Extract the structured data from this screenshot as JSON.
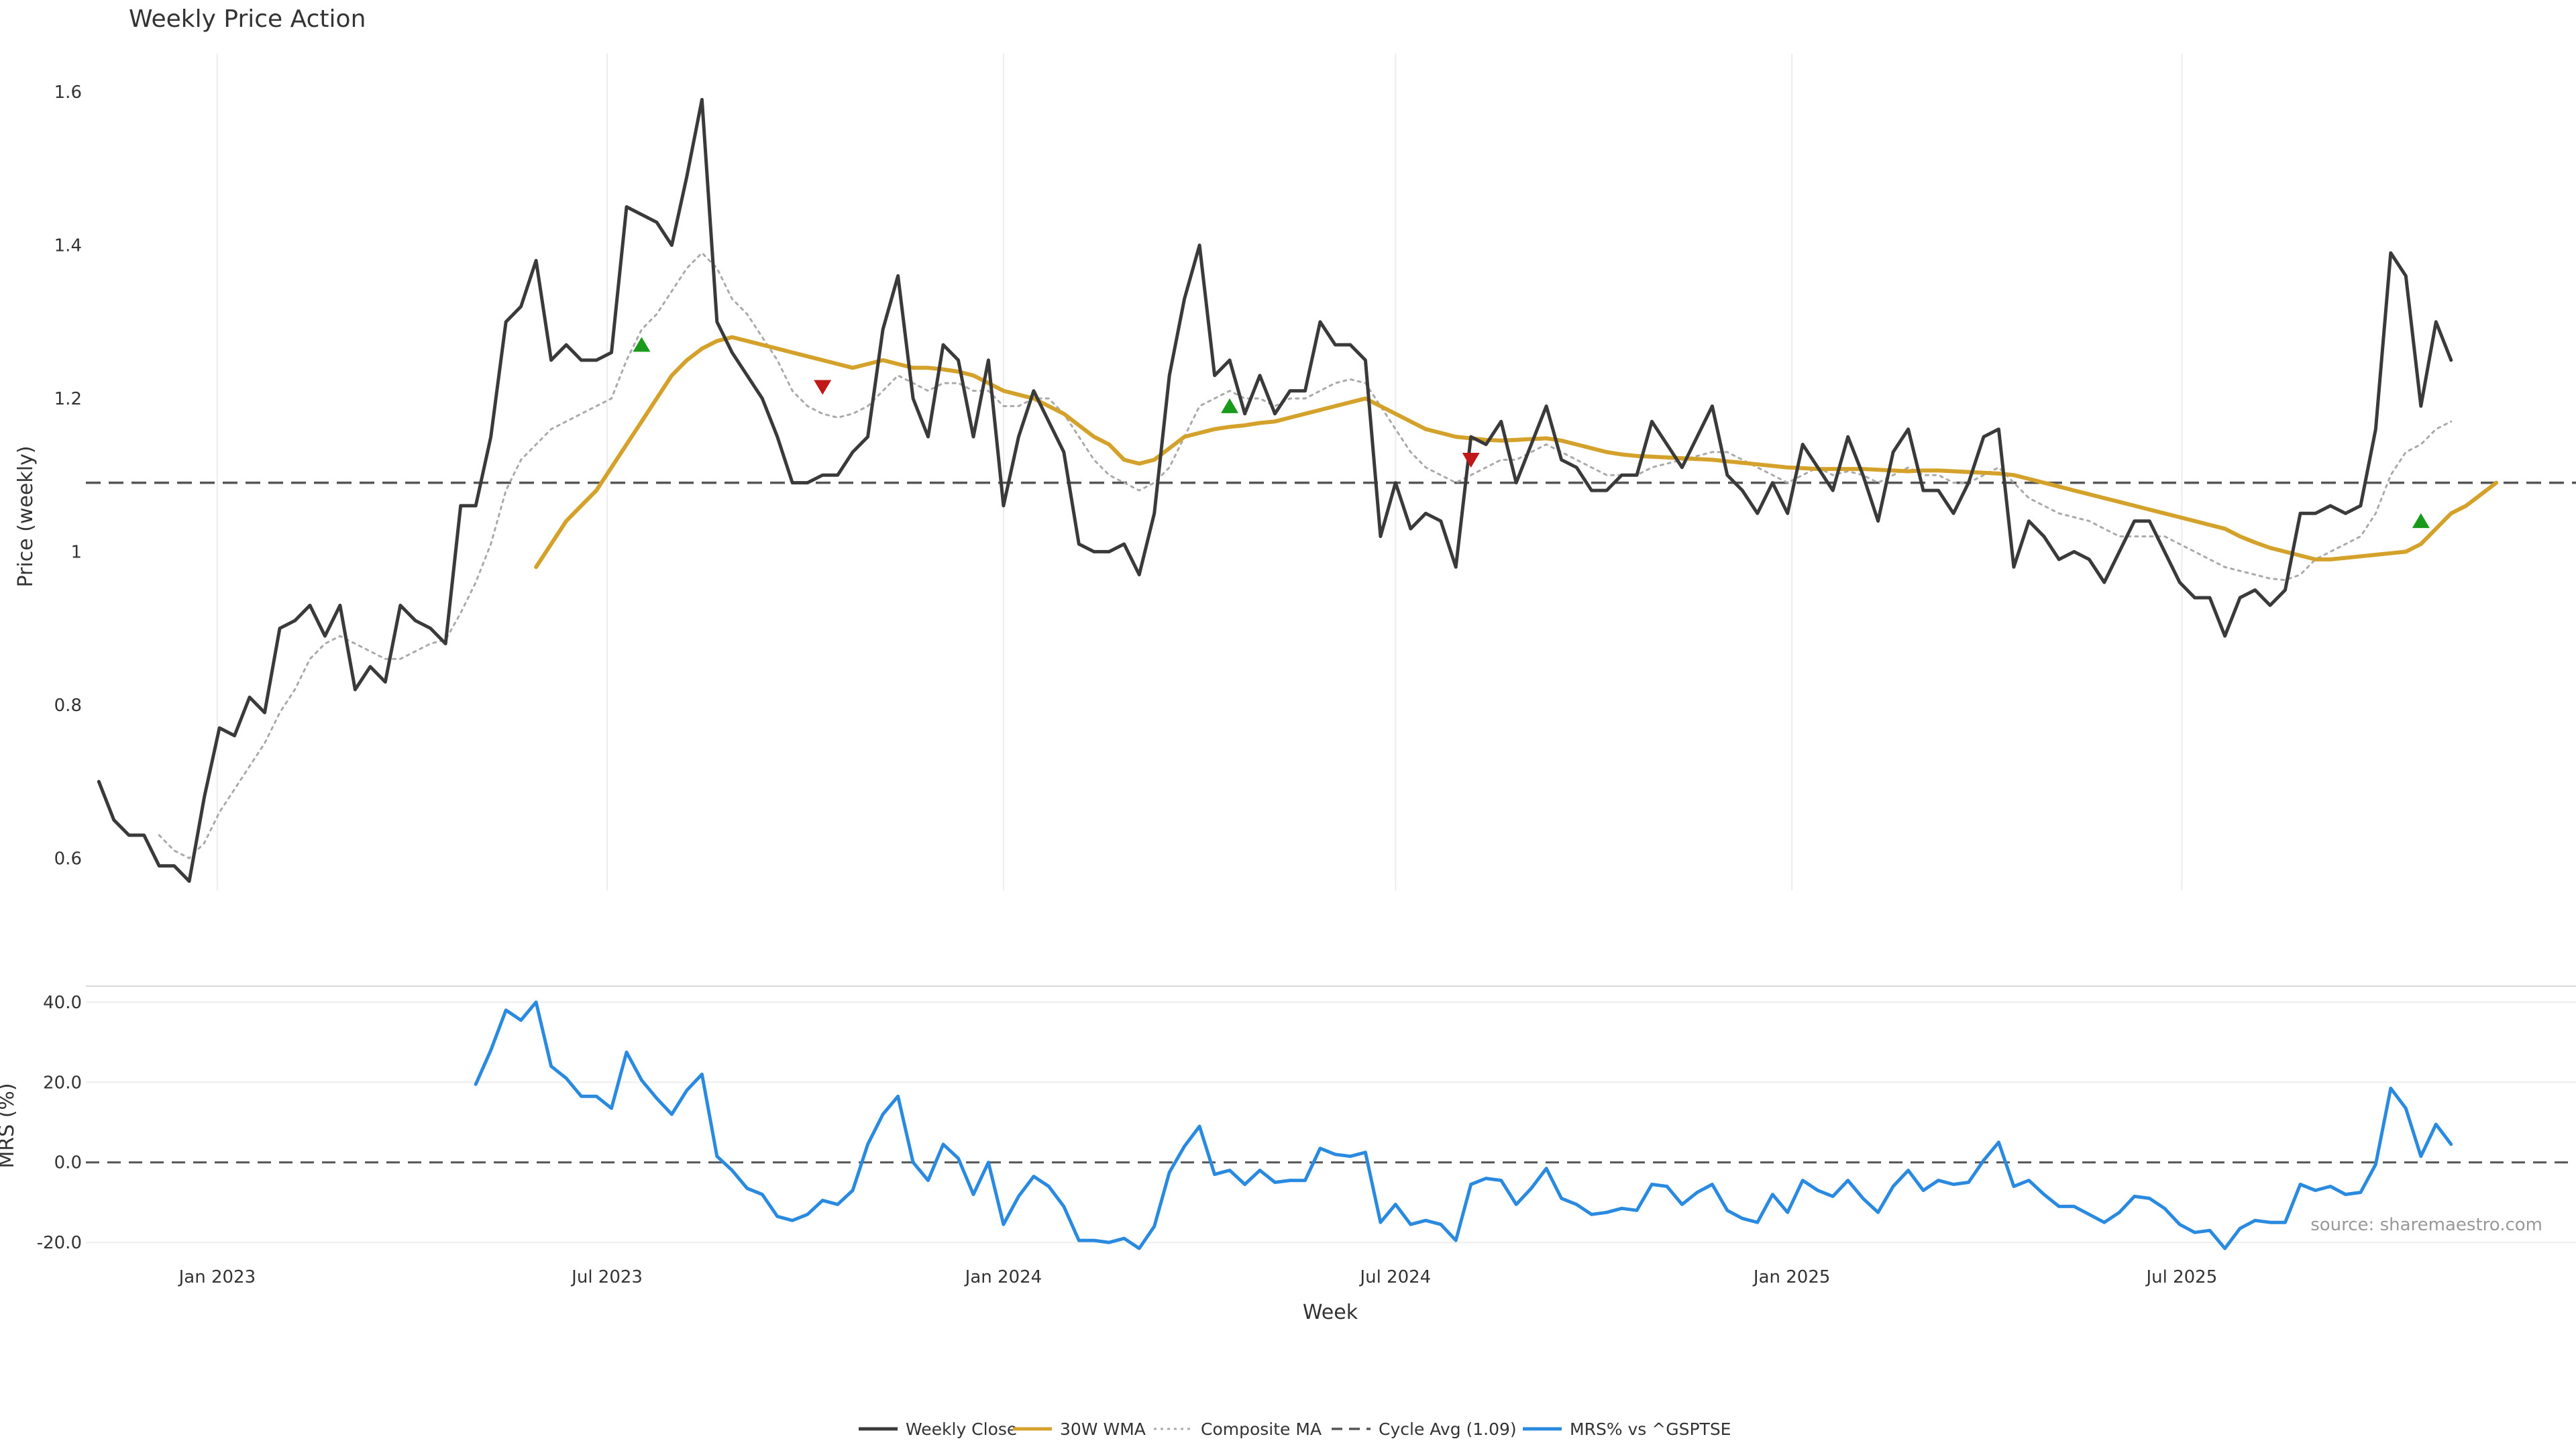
{
  "chart_data": [
    {
      "type": "line",
      "title": "Weekly Price Action",
      "ylabel": "Price (weekly)",
      "xlabel": "",
      "ylim": [
        0.56,
        1.65
      ],
      "yticks": [
        0.6,
        0.8,
        1,
        1.2,
        1.4,
        1.6
      ],
      "ytick_labels": [
        "0.6",
        "0.8",
        "1",
        "1.2",
        "1.4",
        "1.6"
      ],
      "x_start": "2022-11-07",
      "x_step_days": 7,
      "x_range": [
        "2022-11-01",
        "2025-12-31"
      ],
      "grid": "vertical",
      "series": [
        {
          "name": "Weekly Close",
          "color": "#3a3a3a",
          "values": [
            0.7,
            0.65,
            0.63,
            0.63,
            0.59,
            0.59,
            0.57,
            0.68,
            0.77,
            0.76,
            0.81,
            0.79,
            0.9,
            0.91,
            0.93,
            0.89,
            0.93,
            0.82,
            0.85,
            0.83,
            0.93,
            0.91,
            0.9,
            0.88,
            1.06,
            1.06,
            1.15,
            1.3,
            1.32,
            1.38,
            1.25,
            1.27,
            1.25,
            1.25,
            1.26,
            1.45,
            1.44,
            1.43,
            1.4,
            1.49,
            1.59,
            1.3,
            1.26,
            1.23,
            1.2,
            1.15,
            1.09,
            1.09,
            1.1,
            1.1,
            1.13,
            1.15,
            1.29,
            1.36,
            1.2,
            1.15,
            1.27,
            1.25,
            1.15,
            1.25,
            1.06,
            1.15,
            1.21,
            1.17,
            1.13,
            1.01,
            1.0,
            1.0,
            1.01,
            0.97,
            1.05,
            1.23,
            1.33,
            1.4,
            1.23,
            1.25,
            1.18,
            1.23,
            1.18,
            1.21,
            1.21,
            1.3,
            1.27,
            1.27,
            1.25,
            1.02,
            1.09,
            1.03,
            1.05,
            1.04,
            0.98,
            1.15,
            1.14,
            1.17,
            1.09,
            1.14,
            1.19,
            1.12,
            1.11,
            1.08,
            1.08,
            1.1,
            1.1,
            1.17,
            1.14,
            1.11,
            1.15,
            1.19,
            1.1,
            1.08,
            1.05,
            1.09,
            1.05,
            1.14,
            1.11,
            1.08,
            1.15,
            1.1,
            1.04,
            1.13,
            1.16,
            1.08,
            1.08,
            1.05,
            1.09,
            1.15,
            1.16,
            0.98,
            1.04,
            1.02,
            0.99,
            1.0,
            0.99,
            0.96,
            1.0,
            1.04,
            1.04,
            1.0,
            0.96,
            0.94,
            0.94,
            0.89,
            0.94,
            0.95,
            0.93,
            0.95,
            1.05,
            1.05,
            1.06,
            1.05,
            1.06,
            1.16,
            1.39,
            1.36,
            1.19,
            1.3,
            1.25
          ]
        },
        {
          "name": "30W WMA",
          "color": "#d4a22a",
          "values": [
            null,
            null,
            null,
            null,
            null,
            null,
            null,
            null,
            null,
            null,
            null,
            null,
            null,
            null,
            null,
            null,
            null,
            null,
            null,
            null,
            null,
            null,
            null,
            null,
            null,
            null,
            null,
            null,
            null,
            0.98,
            1.01,
            1.04,
            1.06,
            1.08,
            1.11,
            1.14,
            1.17,
            1.2,
            1.23,
            1.25,
            1.265,
            1.275,
            1.28,
            1.275,
            1.27,
            1.265,
            1.26,
            1.255,
            1.25,
            1.245,
            1.24,
            1.245,
            1.25,
            1.245,
            1.24,
            1.24,
            1.238,
            1.235,
            1.23,
            1.22,
            1.21,
            1.205,
            1.2,
            1.19,
            1.18,
            1.165,
            1.15,
            1.14,
            1.12,
            1.115,
            1.12,
            1.135,
            1.15,
            1.155,
            1.16,
            1.163,
            1.165,
            1.168,
            1.17,
            1.175,
            1.18,
            1.185,
            1.19,
            1.195,
            1.2,
            1.19,
            1.18,
            1.17,
            1.16,
            1.155,
            1.15,
            1.148,
            1.146,
            1.145,
            1.146,
            1.147,
            1.148,
            1.145,
            1.14,
            1.135,
            1.13,
            1.127,
            1.125,
            1.124,
            1.123,
            1.122,
            1.121,
            1.12,
            1.118,
            1.116,
            1.114,
            1.112,
            1.11,
            1.109,
            1.108,
            1.108,
            1.108,
            1.108,
            1.107,
            1.106,
            1.105,
            1.106,
            1.106,
            1.105,
            1.104,
            1.103,
            1.102,
            1.1,
            1.095,
            1.09,
            1.085,
            1.08,
            1.075,
            1.07,
            1.065,
            1.06,
            1.055,
            1.05,
            1.045,
            1.04,
            1.035,
            1.03,
            1.02,
            1.012,
            1.005,
            1.0,
            0.995,
            0.99,
            0.99,
            0.992,
            0.994,
            0.996,
            0.998,
            1.0,
            1.01,
            1.03,
            1.05,
            1.06,
            1.075,
            1.09
          ]
        },
        {
          "name": "Composite MA",
          "color": "#aaaaaa",
          "values": [
            null,
            null,
            null,
            null,
            0.63,
            0.61,
            0.6,
            0.62,
            0.66,
            0.69,
            0.72,
            0.75,
            0.79,
            0.82,
            0.86,
            0.88,
            0.89,
            0.88,
            0.87,
            0.86,
            0.86,
            0.87,
            0.88,
            0.885,
            0.92,
            0.96,
            1.01,
            1.08,
            1.12,
            1.14,
            1.16,
            1.17,
            1.18,
            1.19,
            1.2,
            1.25,
            1.29,
            1.31,
            1.34,
            1.37,
            1.39,
            1.37,
            1.33,
            1.31,
            1.28,
            1.25,
            1.21,
            1.19,
            1.18,
            1.175,
            1.18,
            1.19,
            1.21,
            1.23,
            1.22,
            1.21,
            1.22,
            1.22,
            1.21,
            1.21,
            1.19,
            1.19,
            1.2,
            1.2,
            1.18,
            1.15,
            1.12,
            1.1,
            1.09,
            1.08,
            1.09,
            1.11,
            1.15,
            1.19,
            1.2,
            1.21,
            1.2,
            1.2,
            1.19,
            1.2,
            1.2,
            1.21,
            1.22,
            1.225,
            1.22,
            1.19,
            1.16,
            1.13,
            1.11,
            1.1,
            1.09,
            1.1,
            1.11,
            1.12,
            1.12,
            1.13,
            1.14,
            1.13,
            1.12,
            1.11,
            1.1,
            1.1,
            1.1,
            1.11,
            1.115,
            1.12,
            1.125,
            1.13,
            1.13,
            1.12,
            1.11,
            1.1,
            1.09,
            1.1,
            1.11,
            1.1,
            1.105,
            1.1,
            1.09,
            1.1,
            1.11,
            1.1,
            1.1,
            1.09,
            1.09,
            1.1,
            1.11,
            1.09,
            1.07,
            1.06,
            1.05,
            1.045,
            1.04,
            1.03,
            1.02,
            1.02,
            1.02,
            1.02,
            1.01,
            1.0,
            0.99,
            0.98,
            0.975,
            0.97,
            0.965,
            0.963,
            0.97,
            0.99,
            1.0,
            1.01,
            1.02,
            1.05,
            1.1,
            1.13,
            1.14,
            1.16,
            1.17
          ]
        },
        {
          "name": "Cycle Avg (1.09)",
          "color": "#555555",
          "values": [
            1.09
          ]
        }
      ],
      "annotations": [
        {
          "type": "buy-signal",
          "x_index": 36,
          "y": 1.27,
          "color": "#1a9a1a"
        },
        {
          "type": "sell-signal",
          "x_index": 48,
          "y": 1.215,
          "color": "#c01818"
        },
        {
          "type": "buy-signal",
          "x_index": 75,
          "y": 1.19,
          "color": "#1a9a1a"
        },
        {
          "type": "sell-signal",
          "x_index": 91,
          "y": 1.12,
          "color": "#c01818"
        },
        {
          "type": "buy-signal",
          "x_index": 154,
          "y": 1.04,
          "color": "#1a9a1a"
        }
      ]
    },
    {
      "type": "line",
      "title": "",
      "ylabel": "MRS (%)",
      "xlabel": "Week",
      "ylim": [
        -23,
        43
      ],
      "yticks": [
        -20,
        0,
        20,
        40
      ],
      "ytick_labels": [
        "-20.0",
        "0.0",
        "20.0",
        "40.0"
      ],
      "x_start": "2022-11-07",
      "x_step_days": 7,
      "x_range": [
        "2022-11-01",
        "2025-12-31"
      ],
      "xticks": [
        "2023-01-01",
        "2023-07-01",
        "2024-01-01",
        "2024-07-01",
        "2025-01-01",
        "2025-07-01"
      ],
      "xtick_labels": [
        "Jan 2023",
        "Jul 2023",
        "Jan 2024",
        "Jul 2024",
        "Jan 2025",
        "Jul 2025"
      ],
      "grid": "horizontal",
      "series": [
        {
          "name": "MRS% vs ^GSPTSE",
          "color": "#2a8ae0",
          "values": [
            null,
            null,
            null,
            null,
            null,
            null,
            null,
            null,
            null,
            null,
            null,
            null,
            null,
            null,
            null,
            null,
            null,
            null,
            null,
            null,
            null,
            null,
            null,
            null,
            null,
            19.5,
            28,
            38,
            35.5,
            40,
            24,
            21,
            16.5,
            16.5,
            13.5,
            27.5,
            20.5,
            16,
            12,
            18,
            22,
            1.5,
            -2,
            -6.5,
            -8,
            -13.5,
            -14.5,
            -13,
            -9.5,
            -10.5,
            -7,
            4.5,
            12,
            16.5,
            0,
            -4.5,
            4.5,
            1,
            -8,
            0,
            -15.5,
            -8.5,
            -3.5,
            -6,
            -11,
            -19.5,
            -19.5,
            -20,
            -19,
            -21.5,
            -16,
            -2.5,
            4,
            9,
            -3,
            -2,
            -5.5,
            -2,
            -5,
            -4.5,
            -4.5,
            3.5,
            2,
            1.5,
            2.5,
            -15,
            -10.5,
            -15.5,
            -14.5,
            -15.5,
            -19.5,
            -5.5,
            -4,
            -4.5,
            -10.5,
            -6.5,
            -1.5,
            -9,
            -10.5,
            -13,
            -12.5,
            -11.5,
            -12,
            -5.5,
            -6,
            -10.5,
            -7.5,
            -5.5,
            -12,
            -14,
            -15,
            -8,
            -12.5,
            -4.5,
            -7,
            -8.5,
            -4.5,
            -9,
            -12.5,
            -6,
            -2,
            -7,
            -4.5,
            -5.5,
            -5,
            0.5,
            5,
            -6,
            -4.5,
            -8,
            -11,
            -11,
            -13,
            -15,
            -12.5,
            -8.5,
            -9,
            -11.5,
            -15.5,
            -17.5,
            -17,
            -21.5,
            -16.5,
            -14.5,
            -15,
            -15,
            -5.5,
            -7,
            -6,
            -8,
            -7.5,
            -0.5,
            18.5,
            13.5,
            1.5,
            9.5,
            4.5
          ]
        }
      ],
      "source": "source: sharemaestro.com"
    }
  ],
  "legend": {
    "position": "bottom-center",
    "items": [
      {
        "label": "Weekly Close",
        "color": "#3a3a3a",
        "style": "solid"
      },
      {
        "label": "30W WMA",
        "color": "#d4a22a",
        "style": "solid"
      },
      {
        "label": "Composite MA",
        "color": "#aaaaaa",
        "style": "dotted"
      },
      {
        "label": "Cycle Avg (1.09)",
        "color": "#555555",
        "style": "dashed"
      },
      {
        "label": "MRS% vs ^GSPTSE",
        "color": "#2a8ae0",
        "style": "solid"
      }
    ]
  }
}
